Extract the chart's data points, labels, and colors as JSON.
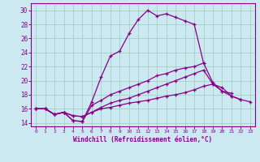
{
  "xlabel": "Windchill (Refroidissement éolien,°C)",
  "ylabel": "",
  "bg_color": "#cce8f0",
  "line_color": "#880088",
  "grid_color": "#99ccbb",
  "xlim": [
    -0.5,
    23.5
  ],
  "ylim": [
    13.5,
    31
  ],
  "xticks": [
    0,
    1,
    2,
    3,
    4,
    5,
    6,
    7,
    8,
    9,
    10,
    11,
    12,
    13,
    14,
    15,
    16,
    17,
    18,
    19,
    20,
    21,
    22,
    23
  ],
  "yticks": [
    14,
    16,
    18,
    20,
    22,
    24,
    26,
    28,
    30
  ],
  "lines": [
    {
      "x": [
        0,
        1,
        2,
        3,
        4,
        5,
        6,
        7,
        8,
        9,
        10,
        11,
        12,
        13,
        14,
        15,
        16,
        17,
        18
      ],
      "y": [
        16,
        16,
        15.2,
        15.5,
        14.3,
        14.2,
        17,
        20.5,
        23.5,
        24.2,
        26.7,
        28.7,
        30,
        29.2,
        29.5,
        29,
        28.5,
        28,
        22.5
      ]
    },
    {
      "x": [
        0,
        1,
        2,
        3,
        4,
        5,
        6,
        7,
        8,
        9,
        10,
        11,
        12,
        13,
        14,
        15,
        16,
        17,
        18,
        19,
        20,
        21
      ],
      "y": [
        16,
        16,
        15.2,
        15.5,
        14.3,
        14.2,
        16.5,
        17.2,
        18,
        18.5,
        19,
        19.5,
        20,
        20.7,
        21,
        21.5,
        21.8,
        22,
        22.5,
        19.7,
        18.5,
        18.2
      ]
    },
    {
      "x": [
        0,
        1,
        2,
        3,
        4,
        5,
        6,
        7,
        8,
        9,
        10,
        11,
        12,
        13,
        14,
        15,
        16,
        17,
        18,
        19,
        20,
        21,
        22
      ],
      "y": [
        16,
        16,
        15.2,
        15.5,
        15,
        14.9,
        15.5,
        16.2,
        16.8,
        17.2,
        17.5,
        18,
        18.5,
        19,
        19.5,
        20,
        20.5,
        21,
        21.5,
        19.5,
        18.5,
        17.8,
        17.3
      ]
    },
    {
      "x": [
        0,
        1,
        2,
        3,
        4,
        5,
        6,
        7,
        8,
        9,
        10,
        11,
        12,
        13,
        14,
        15,
        16,
        17,
        18,
        19,
        20,
        21,
        22,
        23
      ],
      "y": [
        16,
        16,
        15.2,
        15.5,
        15,
        14.9,
        15.5,
        16,
        16.2,
        16.5,
        16.8,
        17,
        17.2,
        17.5,
        17.8,
        18,
        18.3,
        18.7,
        19.2,
        19.5,
        19,
        17.8,
        17.3,
        17
      ]
    }
  ]
}
